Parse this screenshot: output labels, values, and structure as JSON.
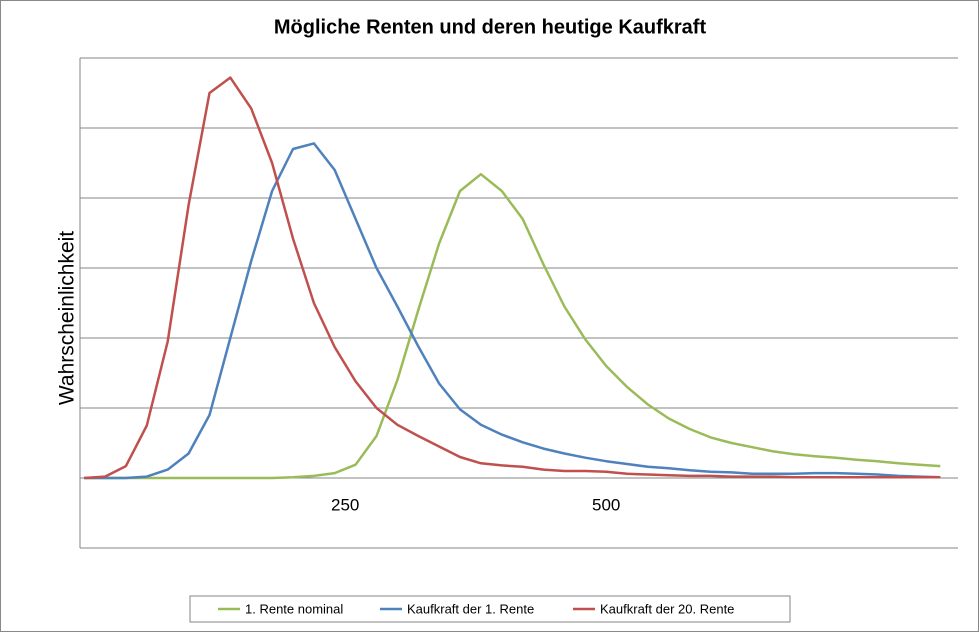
{
  "chart_data": {
    "type": "line",
    "title": "Mögliche Renten und deren heutige Kaufkraft",
    "y_label": "Wahrscheinlichkeit",
    "x": [
      0,
      20,
      40,
      60,
      80,
      100,
      120,
      140,
      160,
      180,
      200,
      220,
      240,
      260,
      280,
      300,
      320,
      340,
      360,
      380,
      400,
      420,
      440,
      460,
      480,
      500,
      520,
      540,
      560,
      580,
      600,
      620,
      640,
      660,
      680,
      700,
      720,
      740,
      760,
      780,
      800,
      820
    ],
    "xlim": [
      -4,
      837
    ],
    "xticks": [
      250,
      500
    ],
    "ylim": [
      -1,
      6
    ],
    "ygrid": [
      -1,
      0,
      1,
      2,
      3,
      4,
      5,
      6
    ],
    "grid": true,
    "legend": "bottom",
    "series": [
      {
        "name": "1. Rente nominal",
        "color": "#9bbb59",
        "values": [
          0,
          0,
          0,
          0,
          0,
          0,
          0,
          0,
          0,
          0,
          0.01,
          0.03,
          0.07,
          0.19,
          0.6,
          1.4,
          2.4,
          3.35,
          4.1,
          4.34,
          4.1,
          3.7,
          3.05,
          2.45,
          1.98,
          1.6,
          1.3,
          1.05,
          0.85,
          0.7,
          0.58,
          0.5,
          0.44,
          0.38,
          0.34,
          0.31,
          0.29,
          0.26,
          0.24,
          0.21,
          0.19,
          0.17
        ]
      },
      {
        "name": "Kaufkraft der 1. Rente",
        "color": "#4f81bd",
        "values": [
          0,
          0,
          0,
          0.02,
          0.12,
          0.35,
          0.9,
          2.0,
          3.1,
          4.1,
          4.7,
          4.78,
          4.4,
          3.7,
          3.0,
          2.45,
          1.88,
          1.35,
          0.98,
          0.76,
          0.62,
          0.51,
          0.42,
          0.35,
          0.29,
          0.24,
          0.2,
          0.16,
          0.14,
          0.11,
          0.09,
          0.08,
          0.06,
          0.06,
          0.06,
          0.07,
          0.07,
          0.06,
          0.05,
          0.03,
          0.02,
          0.01
        ]
      },
      {
        "name": "Kaufkraft der 20. Rente",
        "color": "#c0504d",
        "values": [
          0,
          0.02,
          0.17,
          0.75,
          1.95,
          3.9,
          5.5,
          5.72,
          5.28,
          4.5,
          3.42,
          2.5,
          1.87,
          1.38,
          1.0,
          0.76,
          0.6,
          0.45,
          0.3,
          0.21,
          0.18,
          0.16,
          0.12,
          0.1,
          0.1,
          0.09,
          0.06,
          0.05,
          0.04,
          0.03,
          0.03,
          0.02,
          0.02,
          0.02,
          0.01,
          0.01,
          0.01,
          0.01,
          0.01,
          0.01,
          0.01,
          0.01
        ]
      }
    ]
  }
}
